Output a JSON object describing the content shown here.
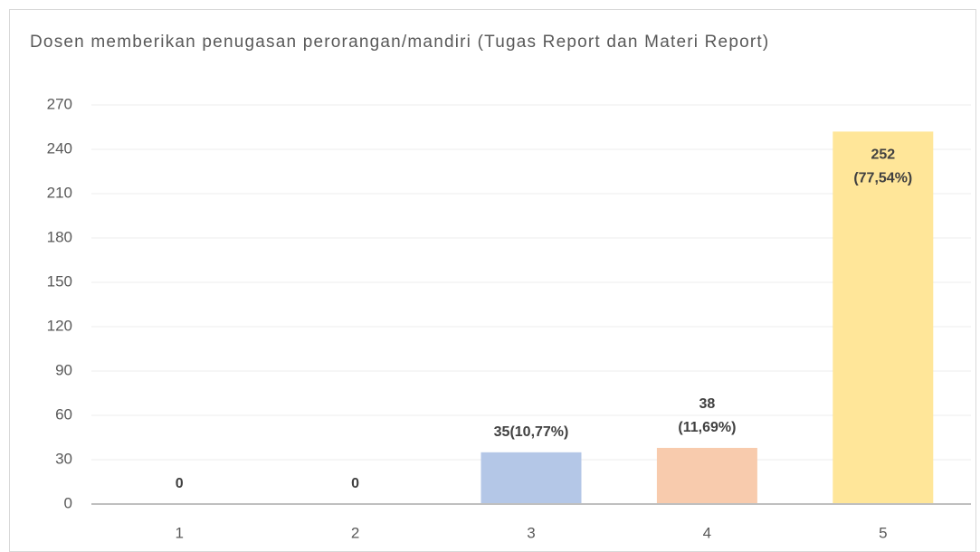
{
  "chart_data": {
    "type": "bar",
    "title": "Dosen memberikan penugasan perorangan/mandiri (Tugas Report dan Materi Report)",
    "categories": [
      "1",
      "2",
      "3",
      "4",
      "5"
    ],
    "values": [
      0,
      0,
      35,
      38,
      252
    ],
    "value_labels": [
      "0",
      "0",
      "35(10,77%)",
      "38\n(11,69%)",
      "252\n(77,54%)"
    ],
    "colors": [
      "#b4c7e7",
      "#b4c7e7",
      "#b4c7e7",
      "#f8cbad",
      "#ffe699"
    ],
    "ylim": [
      0,
      270
    ],
    "yticks": [
      0,
      30,
      60,
      90,
      120,
      150,
      180,
      210,
      240,
      270
    ],
    "grid": true
  }
}
